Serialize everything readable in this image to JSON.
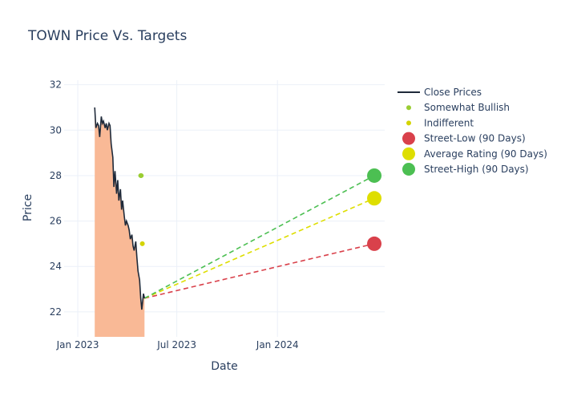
{
  "chart_data": {
    "type": "line",
    "title": "TOWN Price Vs. Targets",
    "xlabel": "Date",
    "ylabel": "Price",
    "x_ticks": [
      {
        "date": "2023-01-01",
        "label": "Jan 2023"
      },
      {
        "date": "2023-07-01",
        "label": "Jul 2023"
      },
      {
        "date": "2024-01-01",
        "label": "Jan 2024"
      }
    ],
    "y_ticks": [
      22,
      24,
      26,
      28,
      30,
      32
    ],
    "xlim": [
      "2022-12-07",
      "2024-07-15"
    ],
    "ylim": [
      20.9,
      32.2
    ],
    "grid": true,
    "legend_position": "right",
    "series": [
      {
        "name": "Close Prices",
        "type": "line-area",
        "line_color": "#1f2a3a",
        "fill_color": "#f9b996",
        "points": [
          [
            "2023-02-01",
            31.0
          ],
          [
            "2023-02-03",
            30.1
          ],
          [
            "2023-02-06",
            30.3
          ],
          [
            "2023-02-08",
            30.2
          ],
          [
            "2023-02-10",
            29.7
          ],
          [
            "2023-02-13",
            30.6
          ],
          [
            "2023-02-15",
            30.3
          ],
          [
            "2023-02-17",
            30.4
          ],
          [
            "2023-02-20",
            30.1
          ],
          [
            "2023-02-22",
            30.3
          ],
          [
            "2023-02-24",
            30.0
          ],
          [
            "2023-02-27",
            30.3
          ],
          [
            "2023-03-01",
            30.2
          ],
          [
            "2023-03-03",
            29.4
          ],
          [
            "2023-03-06",
            28.8
          ],
          [
            "2023-03-08",
            27.5
          ],
          [
            "2023-03-10",
            28.2
          ],
          [
            "2023-03-13",
            27.2
          ],
          [
            "2023-03-15",
            27.8
          ],
          [
            "2023-03-17",
            26.9
          ],
          [
            "2023-03-20",
            27.4
          ],
          [
            "2023-03-22",
            26.5
          ],
          [
            "2023-03-24",
            26.9
          ],
          [
            "2023-03-27",
            26.2
          ],
          [
            "2023-03-29",
            25.8
          ],
          [
            "2023-03-31",
            26.0
          ],
          [
            "2023-04-03",
            25.8
          ],
          [
            "2023-04-05",
            25.6
          ],
          [
            "2023-04-07",
            25.2
          ],
          [
            "2023-04-10",
            25.4
          ],
          [
            "2023-04-12",
            24.9
          ],
          [
            "2023-04-14",
            24.7
          ],
          [
            "2023-04-17",
            25.1
          ],
          [
            "2023-04-19",
            24.4
          ],
          [
            "2023-04-21",
            23.8
          ],
          [
            "2023-04-24",
            23.4
          ],
          [
            "2023-04-26",
            22.6
          ],
          [
            "2023-04-28",
            22.1
          ],
          [
            "2023-05-01",
            22.8
          ],
          [
            "2023-05-03",
            22.6
          ]
        ]
      },
      {
        "name": "Somewhat Bullish",
        "type": "markers",
        "color": "#9acd32",
        "points": [
          [
            "2023-04-26",
            28.0
          ],
          [
            "2023-04-27",
            28.0
          ]
        ]
      },
      {
        "name": "Indifferent",
        "type": "markers",
        "color": "#d4d400",
        "points": [
          [
            "2023-04-29",
            25.0
          ]
        ]
      },
      {
        "name": "Street-Low (90 Days)",
        "type": "target",
        "color": "#d9414b",
        "from": [
          "2023-05-03",
          22.6
        ],
        "to": [
          "2024-06-26",
          25.0
        ]
      },
      {
        "name": "Average Rating (90 Days)",
        "type": "target",
        "color": "#dede00",
        "from": [
          "2023-05-03",
          22.6
        ],
        "to": [
          "2024-06-26",
          27.0
        ]
      },
      {
        "name": "Street-High (90 Days)",
        "type": "target",
        "color": "#4cbf52",
        "from": [
          "2023-05-03",
          22.6
        ],
        "to": [
          "2024-06-26",
          28.0
        ]
      }
    ]
  }
}
